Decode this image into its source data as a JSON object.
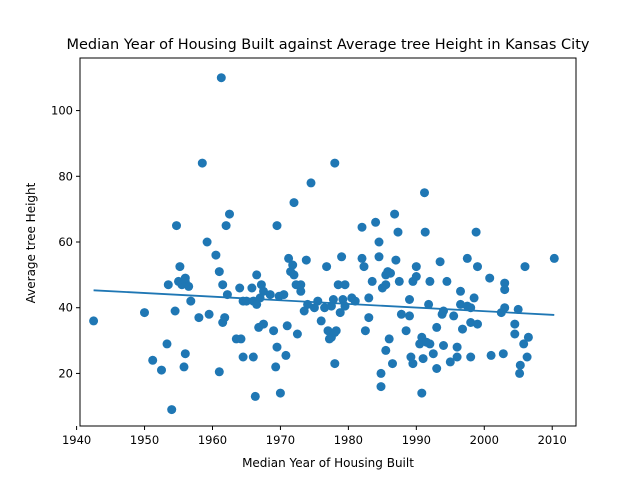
{
  "chart_data": {
    "type": "scatter",
    "title": "Median Year of Housing Built against Average tree Height in Kansas City",
    "xlabel": "Median Year of Housing Built",
    "ylabel": "Average tree Height",
    "xlim": [
      1940.5,
      2013.5
    ],
    "ylim": [
      4,
      116
    ],
    "xticks": [
      1940,
      1950,
      1960,
      1970,
      1980,
      1990,
      2000,
      2010
    ],
    "yticks": [
      20,
      40,
      60,
      80,
      100
    ],
    "grid": false,
    "legend": "none",
    "color": "#1f77b4",
    "trendline": {
      "x": [
        1942.5,
        2010.3
      ],
      "y": [
        45.3,
        37.8
      ]
    },
    "points": [
      [
        1942.5,
        36
      ],
      [
        1950,
        38.5
      ],
      [
        1951.2,
        24
      ],
      [
        1952.5,
        21
      ],
      [
        1953.3,
        29
      ],
      [
        1953.5,
        47
      ],
      [
        1954,
        9
      ],
      [
        1954.5,
        39
      ],
      [
        1954.7,
        65
      ],
      [
        1955,
        48
      ],
      [
        1955.2,
        52.5
      ],
      [
        1955.5,
        47
      ],
      [
        1956,
        48
      ],
      [
        1956,
        49
      ],
      [
        1956,
        26
      ],
      [
        1955.8,
        22
      ],
      [
        1956.5,
        46.5
      ],
      [
        1956.8,
        42
      ],
      [
        1958,
        37
      ],
      [
        1958.5,
        84
      ],
      [
        1959.2,
        60
      ],
      [
        1959.5,
        38
      ],
      [
        1960.5,
        56
      ],
      [
        1961,
        51
      ],
      [
        1961,
        20.5
      ],
      [
        1961.3,
        110
      ],
      [
        1961.5,
        35.5
      ],
      [
        1961.8,
        37
      ],
      [
        1961.5,
        47
      ],
      [
        1962,
        65
      ],
      [
        1962.5,
        68.5
      ],
      [
        1962.2,
        44
      ],
      [
        1963.5,
        30.5
      ],
      [
        1964,
        46
      ],
      [
        1964.2,
        30.5
      ],
      [
        1964.5,
        25
      ],
      [
        1964.5,
        42
      ],
      [
        1965,
        42
      ],
      [
        1965.8,
        46
      ],
      [
        1966,
        25
      ],
      [
        1966,
        42
      ],
      [
        1966.3,
        13
      ],
      [
        1966.5,
        50
      ],
      [
        1966.5,
        41
      ],
      [
        1966.8,
        34
      ],
      [
        1967,
        43
      ],
      [
        1967.2,
        47
      ],
      [
        1967.5,
        35
      ],
      [
        1967.5,
        45
      ],
      [
        1968.5,
        44
      ],
      [
        1969,
        33
      ],
      [
        1969.3,
        22
      ],
      [
        1969.5,
        65
      ],
      [
        1969.5,
        28
      ],
      [
        1969.8,
        43.5
      ],
      [
        1970,
        14
      ],
      [
        1970.5,
        44
      ],
      [
        1970.8,
        25.5
      ],
      [
        1971,
        34.5
      ],
      [
        1971.2,
        55
      ],
      [
        1971.5,
        51
      ],
      [
        1971.8,
        53
      ],
      [
        1972,
        50
      ],
      [
        1972,
        72
      ],
      [
        1972.3,
        47
      ],
      [
        1972.5,
        32
      ],
      [
        1973,
        45
      ],
      [
        1973,
        47
      ],
      [
        1973.5,
        39
      ],
      [
        1973.8,
        54.5
      ],
      [
        1974,
        41
      ],
      [
        1974.5,
        78
      ],
      [
        1975,
        40
      ],
      [
        1975.5,
        42
      ],
      [
        1976,
        36
      ],
      [
        1976.5,
        40
      ],
      [
        1976.8,
        52.5
      ],
      [
        1977,
        33
      ],
      [
        1977.2,
        30.5
      ],
      [
        1977.5,
        31
      ],
      [
        1977.5,
        40.5
      ],
      [
        1977.8,
        42.5
      ],
      [
        1978,
        84
      ],
      [
        1978,
        23
      ],
      [
        1978,
        32.5
      ],
      [
        1978.2,
        33
      ],
      [
        1978.5,
        47
      ],
      [
        1978.8,
        38.5
      ],
      [
        1979,
        55.5
      ],
      [
        1979.2,
        42.5
      ],
      [
        1979.5,
        40.5
      ],
      [
        1979.5,
        47
      ],
      [
        1980.5,
        43
      ],
      [
        1981,
        42
      ],
      [
        1982,
        55
      ],
      [
        1982,
        64.5
      ],
      [
        1982.3,
        52.5
      ],
      [
        1982.5,
        33
      ],
      [
        1983,
        43
      ],
      [
        1983,
        37
      ],
      [
        1983.5,
        48
      ],
      [
        1984,
        66
      ],
      [
        1984.5,
        60
      ],
      [
        1984.5,
        55.5
      ],
      [
        1984.8,
        20
      ],
      [
        1984.8,
        16
      ],
      [
        1985,
        46
      ],
      [
        1985.5,
        47
      ],
      [
        1985.5,
        50
      ],
      [
        1985.8,
        51
      ],
      [
        1985.5,
        27
      ],
      [
        1986,
        30.5
      ],
      [
        1986.2,
        50.5
      ],
      [
        1986.5,
        23
      ],
      [
        1986.8,
        68.5
      ],
      [
        1987,
        54.5
      ],
      [
        1987.3,
        63
      ],
      [
        1987.5,
        48
      ],
      [
        1987.8,
        38
      ],
      [
        1988.5,
        33
      ],
      [
        1989,
        37.5
      ],
      [
        1989,
        42.5
      ],
      [
        1989.2,
        25
      ],
      [
        1989.5,
        48
      ],
      [
        1989.5,
        23
      ],
      [
        1990,
        49.5
      ],
      [
        1990,
        52.5
      ],
      [
        1990.5,
        29
      ],
      [
        1990.8,
        14
      ],
      [
        1990.8,
        31
      ],
      [
        1991,
        24.5
      ],
      [
        1991.2,
        75
      ],
      [
        1991.3,
        63
      ],
      [
        1991.5,
        29.5
      ],
      [
        1991.8,
        41
      ],
      [
        1992,
        48
      ],
      [
        1992,
        29
      ],
      [
        1992.5,
        26
      ],
      [
        1993,
        34
      ],
      [
        1993,
        21.5
      ],
      [
        1993.5,
        54
      ],
      [
        1993.8,
        38
      ],
      [
        1994,
        39
      ],
      [
        1994,
        28.5
      ],
      [
        1994.5,
        48
      ],
      [
        1995,
        23.5
      ],
      [
        1995.5,
        37.5
      ],
      [
        1996,
        25
      ],
      [
        1996,
        28
      ],
      [
        1996.5,
        45
      ],
      [
        1996.5,
        41
      ],
      [
        1996.8,
        33.5
      ],
      [
        1997.5,
        40.5
      ],
      [
        1997.5,
        55
      ],
      [
        1998,
        40
      ],
      [
        1998,
        35.5
      ],
      [
        1998,
        25
      ],
      [
        1998.5,
        43
      ],
      [
        1998.8,
        63
      ],
      [
        1999,
        52.5
      ],
      [
        1999,
        35
      ],
      [
        2000.8,
        49
      ],
      [
        2001,
        25.5
      ],
      [
        2002.5,
        38.5
      ],
      [
        2002.8,
        26
      ],
      [
        2003,
        47.5
      ],
      [
        2003,
        40
      ],
      [
        2003,
        45.5
      ],
      [
        2004.5,
        35
      ],
      [
        2004.5,
        32
      ],
      [
        2005,
        39.5
      ],
      [
        2005.2,
        20
      ],
      [
        2005.3,
        22.5
      ],
      [
        2005.8,
        29
      ],
      [
        2006,
        52.5
      ],
      [
        2006.3,
        25
      ],
      [
        2006.5,
        31
      ],
      [
        2010.3,
        55
      ]
    ]
  }
}
